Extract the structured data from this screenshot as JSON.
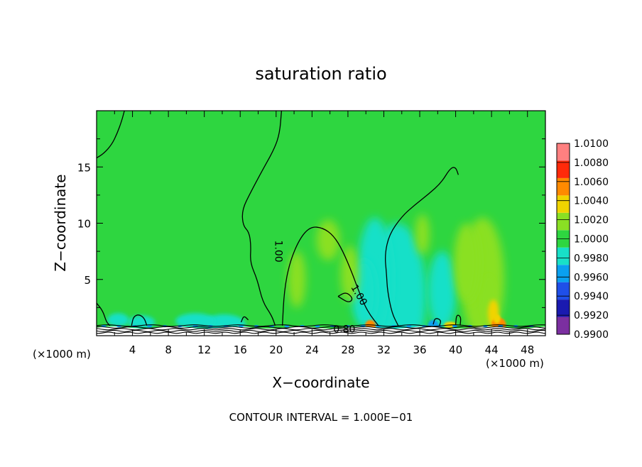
{
  "chart_data": {
    "type": "heatmap",
    "title": "saturation ratio",
    "xlabel": "X−coordinate",
    "ylabel": "Z−coordinate",
    "x_unit_left": "(×1000 m)",
    "x_unit_right": "(×1000 m)",
    "xlim": [
      0,
      50
    ],
    "ylim": [
      0,
      20
    ],
    "x_ticks": [
      4,
      8,
      12,
      16,
      20,
      24,
      28,
      32,
      36,
      40,
      44,
      48
    ],
    "x_tick_labels": [
      "4",
      "8",
      "12",
      "16",
      "20",
      "24",
      "28",
      "32",
      "36",
      "40",
      "44",
      "48"
    ],
    "y_ticks": [
      5,
      10,
      15
    ],
    "y_tick_labels": [
      "5",
      "10",
      "15"
    ],
    "background_value": 1.0,
    "colorbar": {
      "min": 0.99,
      "max": 1.01,
      "levels": [
        0.99,
        0.992,
        0.994,
        0.996,
        0.998,
        1.0,
        1.002,
        1.004,
        1.006,
        1.008,
        1.01
      ],
      "tick_labels": [
        "0.9900",
        "0.9920",
        "0.9940",
        "0.9960",
        "0.9980",
        "1.0000",
        "1.0020",
        "1.0040",
        "1.0060",
        "1.0080",
        "1.0100"
      ],
      "colors": [
        "#7b2fa0",
        "#1a1ab0",
        "#1f4fe8",
        "#0aa0f0",
        "#18e0c8",
        "#2ed640",
        "#8ae024",
        "#f0d400",
        "#ff8a00",
        "#ff2a0a",
        "#ff8080"
      ]
    },
    "contour_interval_text": "CONTOUR INTERVAL = 1.000E−01",
    "contour_labels": [
      {
        "text": "1.00",
        "x": 20.2,
        "y": 7.5
      },
      {
        "text": "1.00",
        "x": 29.2,
        "y": 3.6
      },
      {
        "text": "0.80",
        "x": 27.6,
        "y": 0.55
      }
    ],
    "contours_level_1_00": [
      [
        [
          0.0,
          15.8
        ],
        [
          0.8,
          16.2
        ],
        [
          1.7,
          17.0
        ],
        [
          2.3,
          18.0
        ],
        [
          2.8,
          19.1
        ],
        [
          3.1,
          20.0
        ]
      ],
      [
        [
          20.6,
          20.0
        ],
        [
          20.4,
          18.0
        ],
        [
          19.8,
          16.6
        ],
        [
          18.4,
          14.6
        ],
        [
          17.2,
          12.8
        ],
        [
          16.2,
          11.2
        ],
        [
          16.3,
          9.8
        ],
        [
          17.0,
          9.2
        ],
        [
          17.2,
          8.0
        ],
        [
          17.1,
          6.5
        ],
        [
          17.9,
          5.0
        ],
        [
          18.5,
          3.0
        ],
        [
          19.5,
          1.8
        ],
        [
          19.9,
          0.9
        ]
      ],
      [
        [
          20.7,
          0.9
        ],
        [
          20.9,
          4.0
        ],
        [
          21.5,
          6.5
        ],
        [
          22.6,
          8.6
        ],
        [
          23.8,
          9.7
        ],
        [
          25.2,
          9.6
        ],
        [
          26.4,
          8.9
        ],
        [
          27.4,
          7.6
        ],
        [
          28.5,
          5.5
        ],
        [
          29.0,
          4.4
        ],
        [
          29.8,
          2.8
        ],
        [
          30.5,
          1.8
        ],
        [
          31.4,
          0.9
        ]
      ],
      [
        [
          33.6,
          0.9
        ],
        [
          32.9,
          2.0
        ],
        [
          32.4,
          4.0
        ],
        [
          32.3,
          5.5
        ],
        [
          32.1,
          7.2
        ],
        [
          32.6,
          9.0
        ],
        [
          34.0,
          10.6
        ],
        [
          35.4,
          11.6
        ],
        [
          37.0,
          12.6
        ],
        [
          38.4,
          13.6
        ],
        [
          39.4,
          14.9
        ],
        [
          40.0,
          15.0
        ],
        [
          40.3,
          14.3
        ]
      ],
      [
        [
          0.0,
          2.9
        ],
        [
          0.7,
          2.2
        ],
        [
          1.1,
          1.2
        ],
        [
          1.5,
          0.9
        ]
      ],
      [
        [
          3.9,
          0.9
        ],
        [
          4.1,
          1.7
        ],
        [
          4.7,
          1.9
        ],
        [
          5.3,
          1.6
        ],
        [
          5.6,
          0.9
        ]
      ],
      [
        [
          26.9,
          3.5
        ],
        [
          27.8,
          3.9
        ],
        [
          28.6,
          3.3
        ],
        [
          28.1,
          2.9
        ],
        [
          26.9,
          3.5
        ]
      ],
      [
        [
          37.5,
          1.0
        ],
        [
          37.7,
          1.6
        ],
        [
          38.4,
          1.4
        ],
        [
          38.2,
          0.9
        ]
      ],
      [
        [
          40.0,
          1.0
        ],
        [
          40.1,
          1.9
        ],
        [
          40.6,
          1.7
        ],
        [
          40.5,
          0.9
        ]
      ],
      [
        [
          16.1,
          1.2
        ],
        [
          16.4,
          1.8
        ],
        [
          16.9,
          1.4
        ]
      ]
    ]
  }
}
